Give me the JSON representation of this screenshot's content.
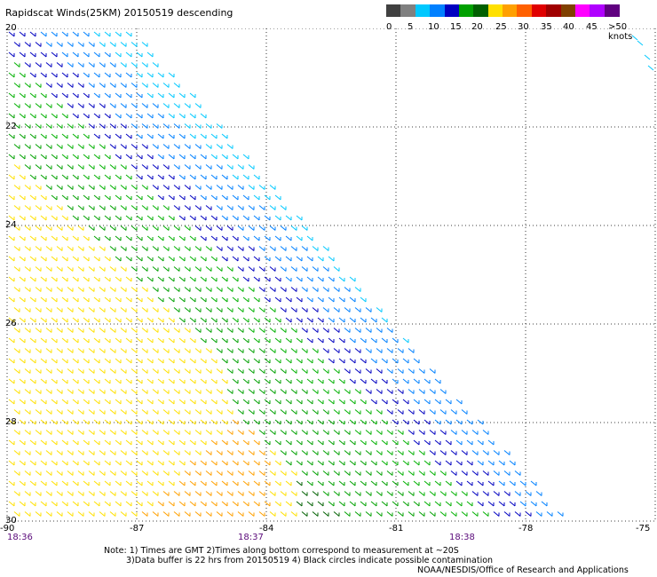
{
  "title": "Rapidscat Winds(25KM) 20150519 descending",
  "colorbar": {
    "labels": [
      "0",
      "5",
      "10",
      "15",
      "20",
      "25",
      "30",
      "35",
      "40",
      "45",
      ">50 knots"
    ],
    "colors": [
      "#404040",
      "#808080",
      "#00c8ff",
      "#0080ff",
      "#0000c0",
      "#00a000",
      "#006000",
      "#ffe000",
      "#ffa000",
      "#ff6000",
      "#e00000",
      "#a00000",
      "#804000",
      "#ff00ff",
      "#b000ff",
      "#600080"
    ]
  },
  "map": {
    "lat_labels": [
      "20",
      "22",
      "24",
      "26",
      "28",
      "30"
    ],
    "lon_labels": [
      "-90",
      "-87",
      "-84",
      "-81",
      "-78",
      "-75"
    ],
    "time_labels": [
      "18:36",
      "18:37",
      "18:38"
    ],
    "lat_range": [
      20,
      30
    ],
    "lon_range": [
      -90,
      -75
    ]
  },
  "notes": {
    "line1": "Note: 1) Times are GMT 2)Times along bottom correspond to measurement at ~20S",
    "line2": "3)Data buffer is 22 hrs from 20150519 4) Black circles indicate possible contamination"
  },
  "credit": "NOAA/NESDIS/Office of Research and Applications"
}
